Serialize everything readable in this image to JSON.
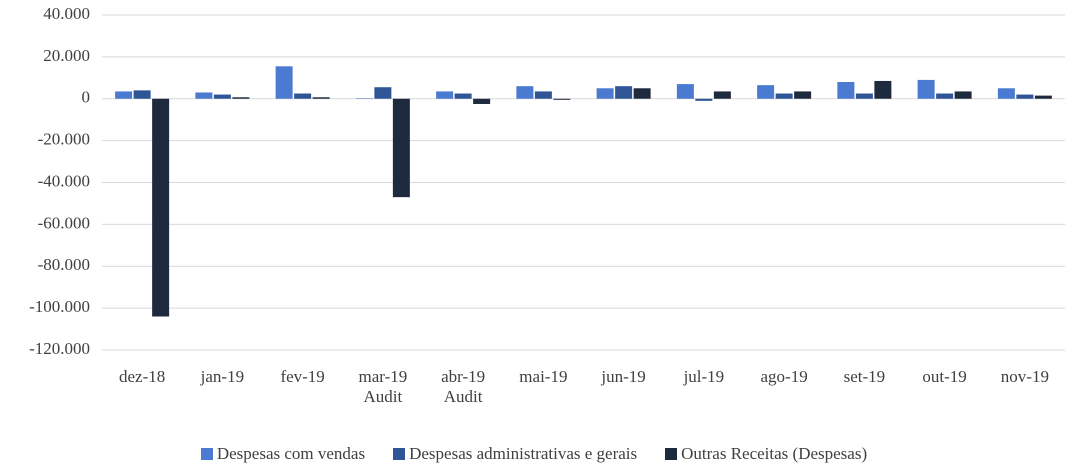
{
  "chart_data": {
    "type": "bar",
    "categories": [
      "dez-18",
      "jan-19",
      "fev-19",
      "mar-19\nAudit",
      "abr-19\nAudit",
      "mai-19",
      "jun-19",
      "jul-19",
      "ago-19",
      "set-19",
      "out-19",
      "nov-19"
    ],
    "series": [
      {
        "name": "Despesas com vendas",
        "color": "#4a7bd0",
        "values": [
          3500,
          3000,
          15500,
          200,
          3500,
          6000,
          5000,
          7000,
          6500,
          8000,
          9000,
          5000
        ]
      },
      {
        "name": "Despesas administrativas e gerais",
        "color": "#2f5597",
        "values": [
          4000,
          2000,
          2500,
          5500,
          2500,
          3500,
          6000,
          -1000,
          2500,
          2500,
          2500,
          2000
        ]
      },
      {
        "name": "Outras Receitas (Despesas)",
        "color": "#1e2b3e",
        "values": [
          -104000,
          700,
          700,
          -47000,
          -2500,
          -500,
          5000,
          3500,
          3500,
          8500,
          3500,
          1500
        ]
      }
    ],
    "ylim": [
      -120000,
      40000
    ],
    "yticks": [
      {
        "value": -120000,
        "label": "-120.000"
      },
      {
        "value": -100000,
        "label": "-100.000"
      },
      {
        "value": -80000,
        "label": "-80.000"
      },
      {
        "value": -60000,
        "label": "-60.000"
      },
      {
        "value": -40000,
        "label": "-40.000"
      },
      {
        "value": -20000,
        "label": "-20.000"
      },
      0,
      {
        "value": 20000,
        "label": "20.000"
      },
      {
        "value": 40000,
        "label": "40.000"
      }
    ],
    "grid": true,
    "legend": "bottom"
  }
}
